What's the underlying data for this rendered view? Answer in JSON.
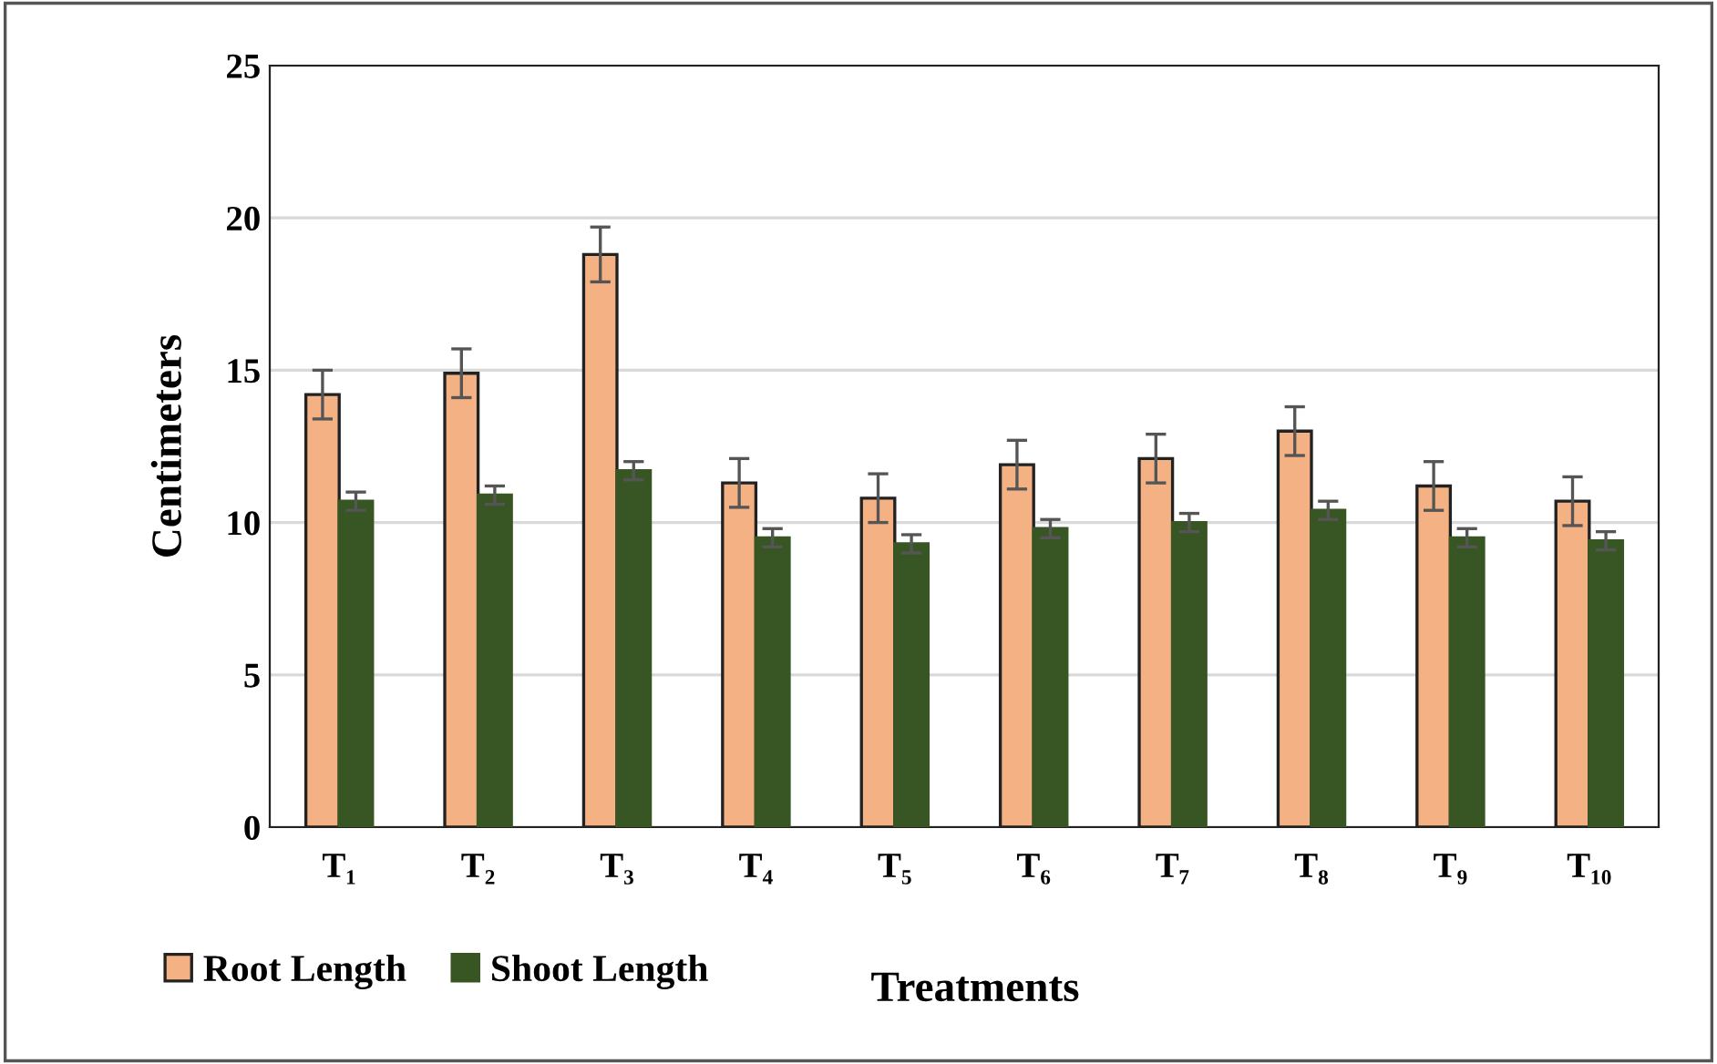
{
  "chart_data": {
    "type": "bar",
    "xlabel": "Treatments",
    "ylabel": "Centimeters",
    "categories": [
      "T₁",
      "T₂",
      "T₃",
      "T₄",
      "T₅",
      "T₆",
      "T₇",
      "T₈",
      "T₉",
      "T₁₀"
    ],
    "series": [
      {
        "name": "Root Length",
        "color": "#f4b183",
        "values": [
          14.2,
          14.9,
          18.8,
          11.3,
          10.8,
          11.9,
          12.1,
          13.0,
          11.2,
          10.7
        ],
        "errors": [
          0.8,
          0.8,
          0.9,
          0.8,
          0.8,
          0.8,
          0.8,
          0.8,
          0.8,
          0.8
        ]
      },
      {
        "name": "Shoot Length",
        "color": "#375623",
        "values": [
          10.7,
          10.9,
          11.7,
          9.5,
          9.3,
          9.8,
          10.0,
          10.4,
          9.5,
          9.4
        ],
        "errors": [
          0.3,
          0.3,
          0.3,
          0.3,
          0.3,
          0.3,
          0.3,
          0.3,
          0.3,
          0.3
        ]
      }
    ],
    "ylim": [
      0,
      25
    ],
    "yticks": [
      0,
      5,
      10,
      15,
      20,
      25
    ],
    "grid": "y",
    "legend": "bottom"
  }
}
